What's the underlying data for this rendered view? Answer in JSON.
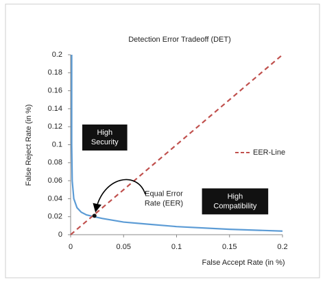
{
  "chart_data": {
    "type": "line",
    "title": "Detection Error Tradeoff (DET)",
    "x_label": "False Accept Rate (in %)",
    "y_label": "False Reject Rate (in %)",
    "xlim": [
      0,
      0.2
    ],
    "ylim": [
      0,
      0.2
    ],
    "xticks": [
      0,
      0.05,
      0.1,
      0.15,
      0.2
    ],
    "yticks": [
      0,
      0.02,
      0.04,
      0.06,
      0.08,
      0.1,
      0.12,
      0.14,
      0.16,
      0.18,
      0.2
    ],
    "series": [
      {
        "color": "#5b9bd5",
        "x": [
          0.001,
          0.001,
          0.0015,
          0.003,
          0.006,
          0.01,
          0.015,
          0.022,
          0.03,
          0.05,
          0.07,
          0.1,
          0.15,
          0.2
        ],
        "values": [
          0.2,
          0.1,
          0.06,
          0.04,
          0.03,
          0.025,
          0.022,
          0.02,
          0.018,
          0.014,
          0.012,
          0.009,
          0.006,
          0.004
        ]
      },
      {
        "name": "EER-Line",
        "color": "#c0504d",
        "dashed": true,
        "x": [
          0,
          0.2
        ],
        "values": [
          0,
          0.2
        ]
      }
    ],
    "eer_point": {
      "x": 0.0225,
      "y": 0.021
    },
    "annotations": [
      {
        "lines": [
          "High",
          "Security"
        ],
        "boxed": true,
        "x": 0.011,
        "y": 0.108
      },
      {
        "lines": [
          "High",
          "Compatibility"
        ],
        "boxed": true,
        "x": 0.124,
        "y": 0.037
      },
      {
        "lines": [
          "Equal Error",
          "Rate (EER)"
        ],
        "boxed": false,
        "x": 0.088,
        "y": 0.04
      }
    ]
  }
}
